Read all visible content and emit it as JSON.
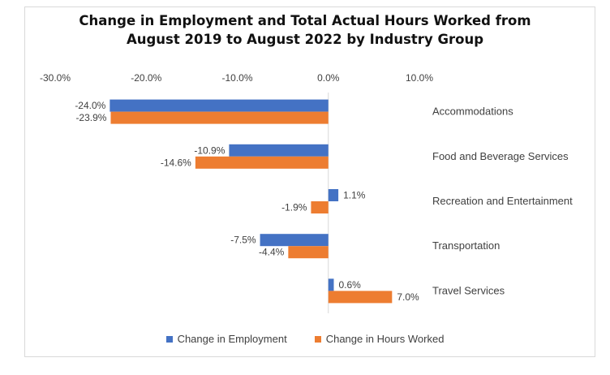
{
  "chart_data": {
    "type": "bar",
    "orientation": "horizontal",
    "title_line1": "Change in Employment and Total Actual Hours Worked from",
    "title_line2": "August 2019 to August 2022 by Industry Group",
    "categories": [
      "Accommodations",
      "Food and Beverage Services",
      "Recreation and Entertainment",
      "Transportation",
      "Travel Services"
    ],
    "series": [
      {
        "name": "Change in Employment",
        "color": "#4472c4",
        "values": [
          -24.0,
          -10.9,
          1.1,
          -7.5,
          0.6
        ],
        "labels": [
          "-24.0%",
          "-10.9%",
          "1.1%",
          "-7.5%",
          "0.6%"
        ]
      },
      {
        "name": "Change in Hours Worked",
        "color": "#ed7d31",
        "values": [
          -23.9,
          -14.6,
          -1.9,
          -4.4,
          7.0
        ],
        "labels": [
          "-23.9%",
          "-14.6%",
          "-1.9%",
          "-4.4%",
          "7.0%"
        ]
      }
    ],
    "xlim": [
      -30,
      10
    ],
    "xticks": [
      -30,
      -20,
      -10,
      0,
      10
    ],
    "xtick_labels": [
      "-30.0%",
      "-20.0%",
      "-10.0%",
      "0.0%",
      "10.0%"
    ],
    "axis_position": "top",
    "grid": false,
    "legend_position": "bottom"
  }
}
